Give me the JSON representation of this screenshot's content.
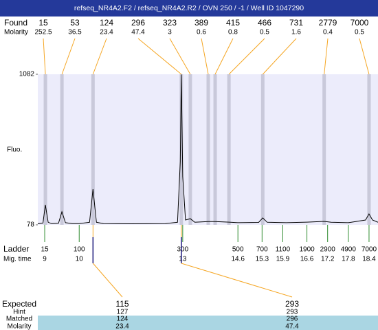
{
  "chart_data": {
    "type": "line",
    "title": "refseq_NR4A2.F2 / refseq_NR4A2.R2 / OVN 250 / -1 / Well ID 1047290",
    "y_label": "Fluo.",
    "ylim": [
      78,
      1082
    ],
    "yticks": [
      78,
      1082
    ],
    "xlim": [
      8.8,
      18.66
    ],
    "x": [
      8.8,
      8.95,
      9.02,
      9.1,
      9.2,
      9.4,
      9.5,
      9.6,
      9.8,
      10.0,
      10.3,
      10.4,
      10.5,
      10.7,
      11.5,
      12.5,
      12.85,
      12.93,
      12.96,
      13.0,
      13.08,
      13.22,
      13.35,
      13.74,
      13.94,
      14.34,
      14.6,
      15.2,
      15.32,
      15.45,
      16.0,
      16.6,
      17.1,
      17.3,
      17.8,
      18.3,
      18.4,
      18.5,
      18.66
    ],
    "series": [
      {
        "color": "#000000",
        "values": [
          85,
          90,
          211,
          95,
          86,
          88,
          165,
          92,
          86,
          86,
          95,
          316,
          95,
          86,
          85,
          86,
          95,
          500,
          1080,
          400,
          110,
          119,
          95,
          100,
          100,
          96,
          92,
          94,
          124,
          95,
          92,
          96,
          101,
          95,
          92,
          110,
          151,
          110,
          95
        ]
      }
    ],
    "found": {
      "label": "Found",
      "molarity_label": "Molarity",
      "sizes": [
        15,
        53,
        124,
        296,
        323,
        389,
        415,
        466,
        731,
        2779,
        7000
      ],
      "molarity": [
        252.5,
        36.5,
        23.4,
        47.4,
        3,
        0.6,
        0.8,
        0.5,
        1.6,
        0.4,
        0.5
      ],
      "migration_times": [
        9.02,
        9.5,
        10.4,
        12.96,
        13.22,
        13.74,
        13.94,
        14.34,
        15.32,
        17.1,
        18.4
      ]
    },
    "ladder": {
      "label": "Ladder",
      "time_label": "Mig. time",
      "sizes": [
        15,
        100,
        300,
        500,
        700,
        1100,
        1900,
        2900,
        4900,
        7000
      ],
      "migration_times": [
        9,
        10,
        13,
        14.6,
        15.3,
        15.9,
        16.6,
        17.2,
        17.8,
        18.4
      ]
    }
  },
  "expected": {
    "row_labels": [
      "Expected",
      "Hint",
      "Matched",
      "Molarity"
    ],
    "values": [
      [
        115,
        293
      ],
      [
        127,
        293
      ],
      [
        124,
        296
      ],
      [
        23.4,
        47.4
      ]
    ]
  }
}
